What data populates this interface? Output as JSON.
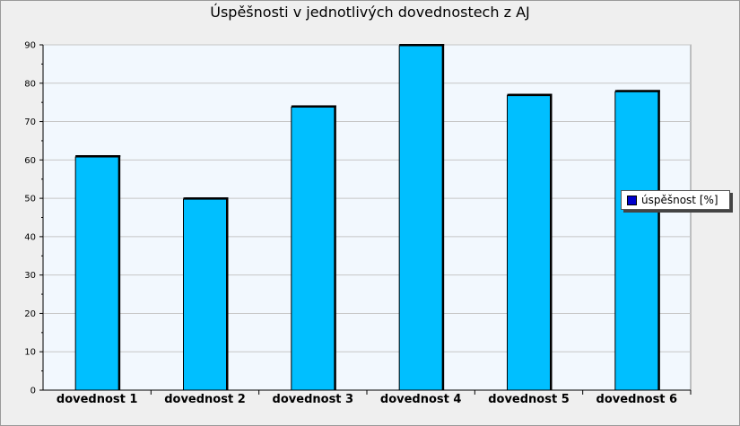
{
  "chart_data": {
    "type": "bar",
    "title": "Úspěšnosti v jednotlivých dovednostech z AJ",
    "categories": [
      "dovednost 1",
      "dovednost 2",
      "dovednost 3",
      "dovednost 4",
      "dovednost 5",
      "dovednost 6"
    ],
    "series": [
      {
        "name": "úspěšnost [%]",
        "values": [
          61,
          50,
          74,
          90,
          77,
          78
        ]
      }
    ],
    "ylim": [
      0,
      90
    ],
    "yticks": [
      "0",
      "10",
      "20",
      "30",
      "40",
      "50",
      "60",
      "70",
      "80",
      "90"
    ],
    "grid": true,
    "legend_position": "right",
    "colors": {
      "bar": "#00bfff",
      "bar_edge": "#000000",
      "legend_swatch": "#0000cc",
      "plot_bg": "#f2f8fe",
      "gridline": "#c6c6c6"
    }
  }
}
